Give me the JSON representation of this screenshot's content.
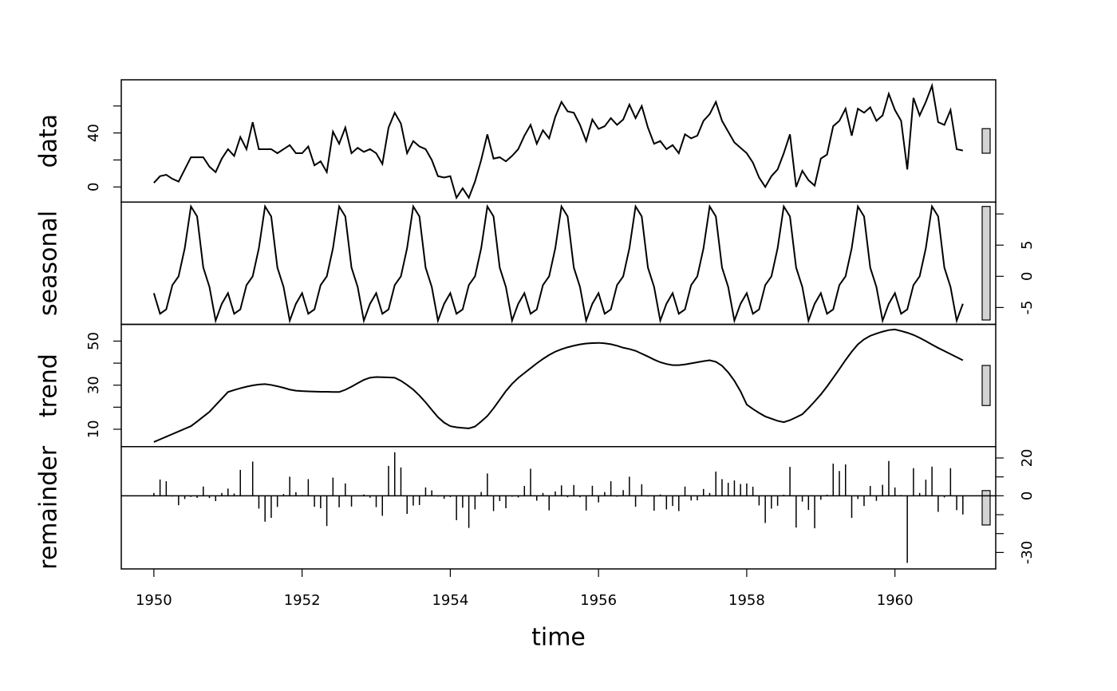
{
  "chart_data": {
    "type": "stl",
    "xlabel": "time",
    "xlim": [
      1949.56,
      1961.36
    ],
    "xticks": [
      1950,
      1952,
      1954,
      1956,
      1958,
      1960
    ],
    "range_bar": 18.2,
    "range_bar_color": "#d3d3d3",
    "color": "#000000",
    "x": [
      1950,
      1950.0833,
      1950.1667,
      1950.25,
      1950.3333,
      1950.4167,
      1950.5,
      1950.5833,
      1950.6667,
      1950.75,
      1950.8333,
      1950.9167,
      1951,
      1951.0833,
      1951.1667,
      1951.25,
      1951.3333,
      1951.4167,
      1951.5,
      1951.5833,
      1951.6667,
      1951.75,
      1951.8333,
      1951.9167,
      1952,
      1952.0833,
      1952.1667,
      1952.25,
      1952.3333,
      1952.4167,
      1952.5,
      1952.5833,
      1952.6667,
      1952.75,
      1952.8333,
      1952.9167,
      1953,
      1953.0833,
      1953.1667,
      1953.25,
      1953.3333,
      1953.4167,
      1953.5,
      1953.5833,
      1953.6667,
      1953.75,
      1953.8333,
      1953.9167,
      1954,
      1954.0833,
      1954.1667,
      1954.25,
      1954.3333,
      1954.4167,
      1954.5,
      1954.5833,
      1954.6667,
      1954.75,
      1954.8333,
      1954.9167,
      1955,
      1955.0833,
      1955.1667,
      1955.25,
      1955.3333,
      1955.4167,
      1955.5,
      1955.5833,
      1955.6667,
      1955.75,
      1955.8333,
      1955.9167,
      1956,
      1956.0833,
      1956.1667,
      1956.25,
      1956.3333,
      1956.4167,
      1956.5,
      1956.5833,
      1956.6667,
      1956.75,
      1956.8333,
      1956.9167,
      1957,
      1957.0833,
      1957.1667,
      1957.25,
      1957.3333,
      1957.4167,
      1957.5,
      1957.5833,
      1957.6667,
      1957.75,
      1957.8333,
      1957.9167,
      1958,
      1958.0833,
      1958.1667,
      1958.25,
      1958.3333,
      1958.4167,
      1958.5,
      1958.5833,
      1958.6667,
      1958.75,
      1958.8333,
      1958.9167,
      1959,
      1959.0833,
      1959.1667,
      1959.25,
      1959.3333,
      1959.4167,
      1959.5,
      1959.5833,
      1959.6667,
      1959.75,
      1959.8333,
      1959.9167,
      1960,
      1960.0833,
      1960.1667,
      1960.25,
      1960.3333,
      1960.4167,
      1960.5,
      1960.5833,
      1960.6667,
      1960.75,
      1960.8333,
      1960.9167
    ],
    "panels": [
      {
        "name": "data",
        "type": "line",
        "side": "left",
        "ylim": [
          -11.2,
          79.4
        ],
        "yticks": [
          0,
          40
        ],
        "yminor": [
          20,
          60
        ],
        "values": [
          3,
          8,
          9,
          6,
          4,
          13,
          22,
          22,
          22,
          15,
          11,
          21,
          28,
          23,
          37,
          28,
          48,
          28,
          28,
          28,
          25,
          28,
          31,
          25,
          25,
          30,
          16,
          19,
          11,
          41,
          32,
          44,
          25,
          29,
          26,
          28,
          25,
          17,
          44,
          55,
          47,
          25,
          34,
          30,
          28,
          20,
          8,
          7,
          8,
          -8,
          -1,
          -8,
          4,
          20,
          39,
          21,
          22,
          19,
          23,
          28,
          38,
          46,
          32,
          42,
          36,
          52,
          63,
          56,
          55,
          46,
          34,
          50,
          43,
          45,
          51,
          46,
          50,
          61,
          51,
          60,
          44,
          32,
          34,
          28,
          31,
          25,
          39,
          36,
          38,
          49,
          54,
          63,
          49,
          41,
          33,
          29,
          25,
          18,
          7,
          0,
          8,
          13,
          25,
          39,
          0,
          12,
          5,
          1,
          21,
          24,
          45,
          49,
          58,
          38,
          58,
          55,
          59,
          49,
          53,
          69,
          57,
          49,
          13,
          66,
          53,
          63,
          75,
          48,
          46,
          57,
          28,
          27
        ]
      },
      {
        "name": "seasonal",
        "type": "line",
        "side": "right",
        "ylim": [
          -7.7,
          11.9
        ],
        "yticks": [
          -5,
          0,
          5
        ],
        "yminor": [
          10
        ],
        "values": [
          -2.7,
          -6,
          -5.3,
          -1.4,
          0,
          4.5,
          11.2,
          9.6,
          1.4,
          -1.7,
          -7.1,
          -4.4,
          -2.7,
          -6,
          -5.3,
          -1.4,
          0,
          4.5,
          11.2,
          9.6,
          1.4,
          -1.7,
          -7.1,
          -4.4,
          -2.7,
          -6,
          -5.3,
          -1.4,
          0,
          4.5,
          11.2,
          9.6,
          1.4,
          -1.7,
          -7.1,
          -4.4,
          -2.7,
          -6,
          -5.3,
          -1.4,
          0,
          4.5,
          11.2,
          9.6,
          1.4,
          -1.7,
          -7.1,
          -4.4,
          -2.7,
          -6,
          -5.3,
          -1.4,
          0,
          4.5,
          11.2,
          9.6,
          1.4,
          -1.7,
          -7.1,
          -4.4,
          -2.7,
          -6,
          -5.3,
          -1.4,
          0,
          4.5,
          11.2,
          9.6,
          1.4,
          -1.7,
          -7.1,
          -4.4,
          -2.7,
          -6,
          -5.3,
          -1.4,
          0,
          4.5,
          11.2,
          9.6,
          1.4,
          -1.7,
          -7.1,
          -4.4,
          -2.7,
          -6,
          -5.3,
          -1.4,
          0,
          4.5,
          11.2,
          9.6,
          1.4,
          -1.7,
          -7.1,
          -4.4,
          -2.7,
          -6,
          -5.3,
          -1.4,
          0,
          4.5,
          11.2,
          9.6,
          1.4,
          -1.7,
          -7.1,
          -4.4,
          -2.7,
          -6,
          -5.3,
          -1.4,
          0,
          4.5,
          11.2,
          9.6,
          1.4,
          -1.7,
          -7.1,
          -4.4,
          -2.7,
          -6,
          -5.3,
          -1.4,
          0,
          4.5,
          11.2,
          9.6,
          1.4,
          -1.7,
          -7.1,
          -4.4
        ]
      },
      {
        "name": "trend",
        "type": "line",
        "side": "left",
        "ylim": [
          2.1,
          57.6
        ],
        "yticks": [
          10,
          30,
          50
        ],
        "yminor": [
          20,
          40
        ],
        "values": [
          4.2,
          5.4,
          6.6,
          7.8,
          9.0,
          10.2,
          11.4,
          13.5,
          15.7,
          17.9,
          20.9,
          23.9,
          26.9,
          27.8,
          28.6,
          29.3,
          29.9,
          30.3,
          30.5,
          30.1,
          29.5,
          28.8,
          28.0,
          27.5,
          27.3,
          27.2,
          27.1,
          27.0,
          27.0,
          26.9,
          26.9,
          27.9,
          29.3,
          30.9,
          32.4,
          33.4,
          33.7,
          33.6,
          33.5,
          33.4,
          32.0,
          30.1,
          28.0,
          25.3,
          22.2,
          18.8,
          15.5,
          13.0,
          11.4,
          10.9,
          10.6,
          10.4,
          11.2,
          13.5,
          16.0,
          19.5,
          23.4,
          27.3,
          30.6,
          33.3,
          35.5,
          37.7,
          39.9,
          41.9,
          43.7,
          45.2,
          46.3,
          47.2,
          47.9,
          48.5,
          48.9,
          49.1,
          49.2,
          49.0,
          48.6,
          47.9,
          47.0,
          46.4,
          45.6,
          44.3,
          43.0,
          41.6,
          40.4,
          39.6,
          39.1,
          39.1,
          39.4,
          39.9,
          40.4,
          40.9,
          41.3,
          40.6,
          38.8,
          35.8,
          32.0,
          27.2,
          21.2,
          19.2,
          17.4,
          15.8,
          14.8,
          13.8,
          13.2,
          14.1,
          15.4,
          16.8,
          19.6,
          22.6,
          25.8,
          29.4,
          33.3,
          37.3,
          41.4,
          45.2,
          48.5,
          50.8,
          52.4,
          53.4,
          54.3,
          55.0,
          55.3,
          54.6,
          53.8,
          52.8,
          51.5,
          50.0,
          48.4,
          46.9,
          45.5,
          44.1,
          42.7,
          41.3
        ]
      },
      {
        "name": "remainder",
        "type": "spikes",
        "side": "right",
        "ylim": [
          -38.7,
          26
        ],
        "yticks": [
          -30,
          0,
          20
        ],
        "yminor": [
          -20,
          -10,
          10
        ],
        "values": [
          1.5,
          8.6,
          7.7,
          -0.4,
          -5,
          -1.7,
          -0.6,
          -1.1,
          4.9,
          -1.2,
          -2.8,
          1.5,
          3.8,
          1.2,
          13.7,
          0.1,
          18.1,
          -6.8,
          -13.7,
          -11.7,
          -5.9,
          0.9,
          10.1,
          1.9,
          0.4,
          8.8,
          -5.8,
          -6.6,
          -16,
          9.6,
          -6.1,
          6.5,
          -5.7,
          -0.2,
          0.7,
          -1.0,
          -6,
          -10.6,
          15.8,
          23,
          15,
          -9.6,
          -5.2,
          -4.9,
          4.4,
          2.9,
          -0.4,
          -1.6,
          -0.7,
          -12.9,
          -6.3,
          -17,
          -7.2,
          2,
          11.8,
          -8.1,
          -2.8,
          -6.6,
          -0.5,
          -0.9,
          5.2,
          14.3,
          -2.6,
          1.5,
          -7.7,
          2.3,
          5.5,
          -0.8,
          5.7,
          -0.8,
          -7.8,
          5.3,
          -3.5,
          2,
          7.7,
          -0.5,
          3,
          10.1,
          -5.8,
          6.1,
          -0.4,
          -7.9,
          0.7,
          -7.2,
          -5.4,
          -8.1,
          4.9,
          -2.5,
          -2.4,
          3.6,
          1.5,
          12.8,
          8.8,
          6.9,
          8.1,
          6.2,
          6.5,
          4.8,
          -5.1,
          -14.4,
          -6.8,
          -5.3,
          0.6,
          15.3,
          -16.8,
          -3.1,
          -7.5,
          -17.2,
          -2.1,
          0.6,
          17,
          13.1,
          16.6,
          -11.7,
          -1.7,
          -5.4,
          5.2,
          -2.7,
          5.8,
          18.4,
          4.4,
          0.4,
          -35.5,
          14.6,
          1.5,
          8.5,
          15.4,
          -8.5,
          -0.9,
          14.6,
          -7.6,
          -9.9
        ]
      }
    ]
  }
}
